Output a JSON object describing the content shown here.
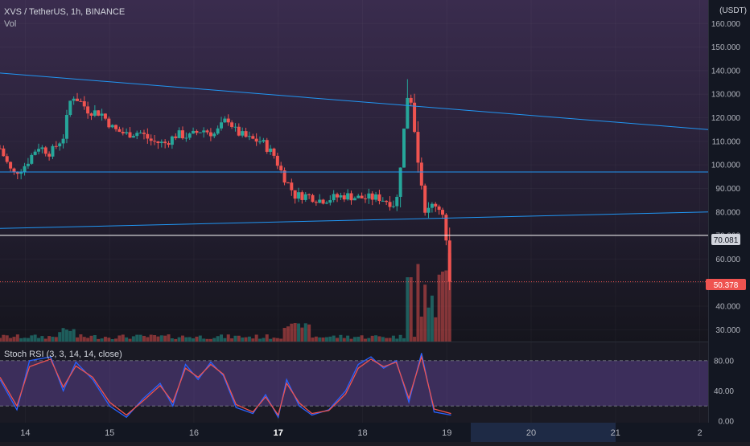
{
  "header": {
    "title": "XVS / TetherUS, 1h, BINANCE",
    "sub": "Vol"
  },
  "currency": "USDT",
  "price_scale": {
    "ticks": [
      "160.000",
      "150.000",
      "140.000",
      "130.000",
      "120.000",
      "110.000",
      "100.000",
      "90.000",
      "80.000",
      "70.000",
      "60.000",
      "50.000",
      "40.000",
      "30.000"
    ],
    "hline_label": "70.081",
    "last_label": "50.378"
  },
  "oscillator": {
    "title": "Stoch RSI (3, 3, 14, 14, close)",
    "ticks": [
      "80.00",
      "40.00",
      "0.00"
    ]
  },
  "time_axis": {
    "labels": [
      "14",
      "15",
      "16",
      "17",
      "18",
      "19",
      "20",
      "21",
      "2"
    ],
    "highlight": "20"
  },
  "colors": {
    "up": "#26a69a",
    "down": "#ef5350",
    "trendline": "#2196f3",
    "k_line": "#2962ff",
    "d_line": "#ef5350",
    "band": "#7e57c2"
  },
  "chart_data": {
    "type": "candlestick",
    "symbol": "XVS / TetherUS",
    "interval": "1h",
    "exchange": "BINANCE",
    "x_labels": [
      "14",
      "15",
      "16",
      "17",
      "18",
      "19",
      "20",
      "21",
      "2"
    ],
    "ylim": [
      25,
      170
    ],
    "horizontal_line": 70.081,
    "last_price": 50.378,
    "trendlines": [
      {
        "from": [
          "13.7",
          139
        ],
        "to": [
          "22.1",
          115
        ]
      },
      {
        "from": [
          "13.7",
          97
        ],
        "to": [
          "22.1",
          97
        ]
      },
      {
        "from": [
          "13.7",
          73
        ],
        "to": [
          "22.1",
          80
        ]
      }
    ],
    "close_path": [
      [
        "13.70",
        107
      ],
      [
        "13.85",
        96
      ],
      [
        "14.00",
        100
      ],
      [
        "14.15",
        108
      ],
      [
        "14.30",
        105
      ],
      [
        "14.45",
        112
      ],
      [
        "14.55",
        130
      ],
      [
        "14.65",
        127
      ],
      [
        "14.75",
        123
      ],
      [
        "14.90",
        122
      ],
      [
        "15.05",
        115
      ],
      [
        "15.20",
        113
      ],
      [
        "15.35",
        114
      ],
      [
        "15.50",
        110
      ],
      [
        "15.65",
        109
      ],
      [
        "15.80",
        113
      ],
      [
        "15.95",
        112
      ],
      [
        "16.10",
        115
      ],
      [
        "16.25",
        113
      ],
      [
        "16.40",
        120
      ],
      [
        "16.50",
        114
      ],
      [
        "16.65",
        111
      ],
      [
        "16.80",
        110
      ],
      [
        "16.95",
        104
      ],
      [
        "17.05",
        96
      ],
      [
        "17.20",
        87
      ],
      [
        "17.35",
        87
      ],
      [
        "17.50",
        85
      ],
      [
        "17.65",
        86
      ],
      [
        "17.80",
        87
      ],
      [
        "17.95",
        86
      ],
      [
        "18.10",
        86
      ],
      [
        "18.20",
        86
      ],
      [
        "18.40",
        83
      ],
      [
        "18.55",
        135
      ],
      [
        "18.65",
        105
      ],
      [
        "18.75",
        79
      ],
      [
        "18.85",
        84
      ],
      [
        "18.95",
        80
      ],
      [
        "19.05",
        50.378
      ]
    ],
    "stoch_rsi": {
      "ylim": [
        0,
        100
      ],
      "bands": [
        20,
        80
      ],
      "k": [
        [
          13.7,
          55
        ],
        [
          13.9,
          15
        ],
        [
          14.05,
          80
        ],
        [
          14.3,
          85
        ],
        [
          14.45,
          40
        ],
        [
          14.6,
          78
        ],
        [
          14.8,
          55
        ],
        [
          15.0,
          20
        ],
        [
          15.2,
          5
        ],
        [
          15.4,
          30
        ],
        [
          15.6,
          50
        ],
        [
          15.75,
          20
        ],
        [
          15.9,
          75
        ],
        [
          16.05,
          55
        ],
        [
          16.2,
          78
        ],
        [
          16.35,
          60
        ],
        [
          16.5,
          18
        ],
        [
          16.7,
          10
        ],
        [
          16.85,
          35
        ],
        [
          17.0,
          5
        ],
        [
          17.1,
          55
        ],
        [
          17.25,
          20
        ],
        [
          17.4,
          8
        ],
        [
          17.6,
          15
        ],
        [
          17.8,
          40
        ],
        [
          17.95,
          75
        ],
        [
          18.1,
          85
        ],
        [
          18.25,
          70
        ],
        [
          18.4,
          80
        ],
        [
          18.55,
          25
        ],
        [
          18.7,
          90
        ],
        [
          18.85,
          12
        ],
        [
          19.05,
          8
        ]
      ],
      "d": [
        [
          13.7,
          58
        ],
        [
          13.9,
          20
        ],
        [
          14.05,
          72
        ],
        [
          14.3,
          82
        ],
        [
          14.45,
          45
        ],
        [
          14.6,
          73
        ],
        [
          14.8,
          58
        ],
        [
          15.0,
          25
        ],
        [
          15.2,
          8
        ],
        [
          15.4,
          27
        ],
        [
          15.6,
          47
        ],
        [
          15.75,
          25
        ],
        [
          15.9,
          70
        ],
        [
          16.05,
          58
        ],
        [
          16.2,
          75
        ],
        [
          16.35,
          62
        ],
        [
          16.5,
          22
        ],
        [
          16.7,
          12
        ],
        [
          16.85,
          32
        ],
        [
          17.0,
          8
        ],
        [
          17.1,
          50
        ],
        [
          17.25,
          24
        ],
        [
          17.4,
          10
        ],
        [
          17.6,
          14
        ],
        [
          17.8,
          36
        ],
        [
          17.95,
          70
        ],
        [
          18.1,
          82
        ],
        [
          18.25,
          72
        ],
        [
          18.4,
          78
        ],
        [
          18.55,
          30
        ],
        [
          18.7,
          85
        ],
        [
          18.85,
          16
        ],
        [
          19.05,
          10
        ]
      ]
    }
  }
}
